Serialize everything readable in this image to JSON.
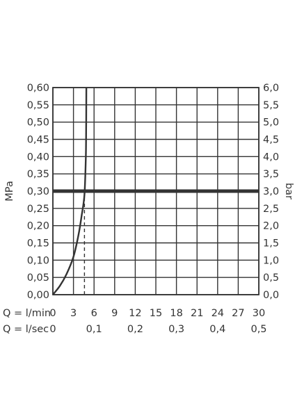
{
  "chart_data": {
    "type": "line",
    "y_left": {
      "label": "MPa",
      "ticks": [
        "0,00",
        "0,05",
        "0,10",
        "0,15",
        "0,20",
        "0,25",
        "0,30",
        "0,35",
        "0,40",
        "0,45",
        "0,50",
        "0,55",
        "0,60"
      ],
      "range": [
        0,
        0.6
      ]
    },
    "y_right": {
      "label": "bar",
      "ticks": [
        "0,0",
        "0,5",
        "1,0",
        "1,5",
        "2,0",
        "2,5",
        "3,0",
        "3,5",
        "4,0",
        "4,5",
        "5,0",
        "5,5",
        "6,0"
      ],
      "range": [
        0,
        6.0
      ]
    },
    "x_lmin": {
      "label": "Q = l/min",
      "ticks": [
        "0",
        "3",
        "6",
        "9",
        "12",
        "15",
        "18",
        "21",
        "24",
        "27",
        "30"
      ],
      "range": [
        0,
        30
      ]
    },
    "x_lsec": {
      "label": "Q = l/sec",
      "ticks": [
        {
          "value": 0,
          "text": "0"
        },
        {
          "value": 0.1,
          "text": "0,1"
        },
        {
          "value": 0.2,
          "text": "0,2"
        },
        {
          "value": 0.3,
          "text": "0,3"
        },
        {
          "value": 0.4,
          "text": "0,4"
        },
        {
          "value": 0.5,
          "text": "0,5"
        }
      ]
    },
    "grid": true,
    "series": [
      {
        "x": [
          0,
          1,
          2,
          3,
          3.7,
          4.2,
          4.6,
          4.8,
          4.85,
          4.87
        ],
        "y": [
          0,
          0.025,
          0.06,
          0.11,
          0.17,
          0.23,
          0.29,
          0.4,
          0.5,
          0.6
        ]
      }
    ],
    "reference_line": {
      "y": 0.3
    },
    "marker_line": {
      "x": 4.6,
      "y_from": 0,
      "y_to": 0.29
    }
  }
}
